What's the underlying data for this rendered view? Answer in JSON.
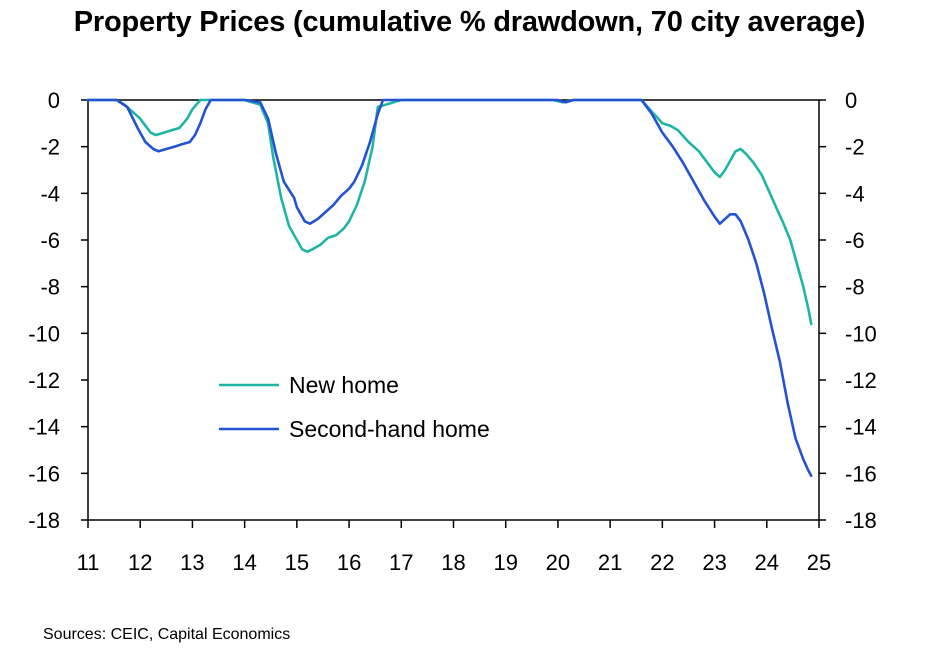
{
  "chart_data": {
    "type": "line",
    "title": "Property Prices (cumulative % drawdown, 70 city average)",
    "source": "Sources: CEIC, Capital Economics",
    "xlabel": "",
    "ylabel": "",
    "xlim": [
      11,
      25
    ],
    "ylim": [
      -18,
      0
    ],
    "x_ticks": [
      11,
      12,
      13,
      14,
      15,
      16,
      17,
      18,
      19,
      20,
      21,
      22,
      23,
      24,
      25
    ],
    "y_ticks": [
      0,
      -2,
      -4,
      -6,
      -8,
      -10,
      -12,
      -14,
      -16,
      -18
    ],
    "legend_position": "center-left",
    "series": [
      {
        "name": "New home",
        "color": "#1fb5a5",
        "x": [
          11.0,
          11.55,
          11.7,
          11.85,
          12.0,
          12.1,
          12.2,
          12.3,
          12.45,
          12.6,
          12.75,
          12.9,
          13.0,
          13.15,
          13.3,
          14.0,
          14.3,
          14.45,
          14.55,
          14.7,
          14.85,
          15.0,
          15.1,
          15.2,
          15.3,
          15.45,
          15.6,
          15.75,
          15.9,
          16.0,
          16.15,
          16.3,
          16.45,
          16.55,
          17.0,
          19.9,
          20.1,
          20.3,
          21.6,
          21.8,
          22.0,
          22.15,
          22.3,
          22.5,
          22.7,
          22.9,
          23.0,
          23.1,
          23.2,
          23.3,
          23.4,
          23.5,
          23.6,
          23.75,
          23.9,
          24.0,
          24.1,
          24.2,
          24.3,
          24.45,
          24.6,
          24.7,
          24.8,
          24.85
        ],
        "values": [
          0.0,
          0.0,
          -0.2,
          -0.5,
          -0.8,
          -1.1,
          -1.4,
          -1.5,
          -1.4,
          -1.3,
          -1.2,
          -0.8,
          -0.4,
          0.0,
          0.0,
          0.0,
          -0.2,
          -1.0,
          -2.5,
          -4.2,
          -5.4,
          -6.0,
          -6.4,
          -6.5,
          -6.4,
          -6.2,
          -5.9,
          -5.8,
          -5.5,
          -5.2,
          -4.5,
          -3.5,
          -2.0,
          -0.3,
          0.0,
          0.0,
          -0.1,
          0.0,
          0.0,
          -0.5,
          -1.0,
          -1.1,
          -1.3,
          -1.8,
          -2.2,
          -2.8,
          -3.1,
          -3.3,
          -3.0,
          -2.6,
          -2.2,
          -2.1,
          -2.3,
          -2.7,
          -3.2,
          -3.7,
          -4.2,
          -4.7,
          -5.2,
          -6.0,
          -7.2,
          -8.0,
          -9.0,
          -9.6
        ]
      },
      {
        "name": "Second-hand home",
        "color": "#2453d2",
        "x": [
          11.0,
          11.55,
          11.75,
          11.95,
          12.1,
          12.25,
          12.35,
          12.5,
          12.65,
          12.8,
          12.95,
          13.05,
          13.15,
          13.25,
          13.35,
          14.0,
          14.3,
          14.45,
          14.6,
          14.75,
          14.95,
          15.0,
          15.15,
          15.25,
          15.4,
          15.55,
          15.7,
          15.85,
          16.0,
          16.1,
          16.25,
          16.4,
          16.55,
          16.65,
          17.0,
          20.0,
          20.15,
          20.3,
          21.6,
          21.8,
          22.0,
          22.2,
          22.4,
          22.6,
          22.8,
          23.0,
          23.1,
          23.2,
          23.3,
          23.4,
          23.5,
          23.65,
          23.8,
          23.95,
          24.1,
          24.25,
          24.4,
          24.55,
          24.7,
          24.8,
          24.85
        ],
        "values": [
          0.0,
          0.0,
          -0.3,
          -1.2,
          -1.8,
          -2.1,
          -2.2,
          -2.1,
          -2.0,
          -1.9,
          -1.8,
          -1.5,
          -1.0,
          -0.4,
          0.0,
          0.0,
          -0.1,
          -0.8,
          -2.3,
          -3.5,
          -4.2,
          -4.6,
          -5.2,
          -5.3,
          -5.1,
          -4.8,
          -4.5,
          -4.1,
          -3.8,
          -3.5,
          -2.8,
          -1.8,
          -0.6,
          0.0,
          0.0,
          0.0,
          -0.1,
          0.0,
          0.0,
          -0.6,
          -1.4,
          -2.0,
          -2.7,
          -3.5,
          -4.3,
          -5.0,
          -5.3,
          -5.1,
          -4.9,
          -4.9,
          -5.2,
          -6.0,
          -7.0,
          -8.3,
          -9.8,
          -11.2,
          -13.0,
          -14.5,
          -15.4,
          -15.9,
          -16.1
        ]
      }
    ]
  }
}
